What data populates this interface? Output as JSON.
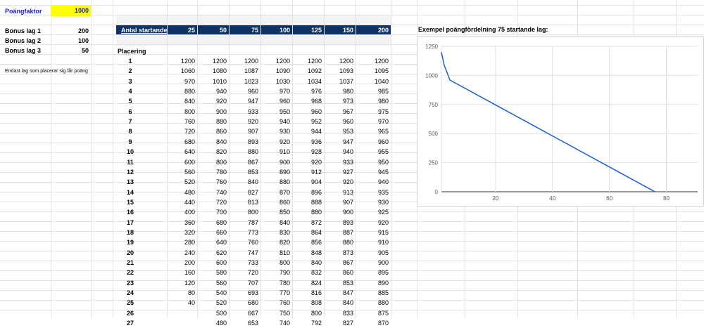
{
  "settings": {
    "points_factor_label": "Poängfaktor",
    "points_factor_value": "1000",
    "bonus": [
      {
        "label": "Bonus lag 1",
        "value": "200"
      },
      {
        "label": "Bonus lag 2",
        "value": "100"
      },
      {
        "label": "Bonus lag 3",
        "value": "50"
      }
    ],
    "note": "Endast lag som placerar sig får poäng"
  },
  "table": {
    "header_title": "Antal startande lag",
    "columns": [
      "25",
      "50",
      "75",
      "100",
      "125",
      "150",
      "200"
    ],
    "placement_label": "Placering",
    "rows": [
      {
        "place": "1",
        "values": [
          "1200",
          "1200",
          "1200",
          "1200",
          "1200",
          "1200",
          "1200"
        ]
      },
      {
        "place": "2",
        "values": [
          "1060",
          "1080",
          "1087",
          "1090",
          "1092",
          "1093",
          "1095"
        ]
      },
      {
        "place": "3",
        "values": [
          "970",
          "1010",
          "1023",
          "1030",
          "1034",
          "1037",
          "1040"
        ]
      },
      {
        "place": "4",
        "values": [
          "880",
          "940",
          "960",
          "970",
          "976",
          "980",
          "985"
        ]
      },
      {
        "place": "5",
        "values": [
          "840",
          "920",
          "947",
          "960",
          "968",
          "973",
          "980"
        ]
      },
      {
        "place": "6",
        "values": [
          "800",
          "900",
          "933",
          "950",
          "960",
          "967",
          "975"
        ]
      },
      {
        "place": "7",
        "values": [
          "760",
          "880",
          "920",
          "940",
          "952",
          "960",
          "970"
        ]
      },
      {
        "place": "8",
        "values": [
          "720",
          "860",
          "907",
          "930",
          "944",
          "953",
          "965"
        ]
      },
      {
        "place": "9",
        "values": [
          "680",
          "840",
          "893",
          "920",
          "936",
          "947",
          "960"
        ]
      },
      {
        "place": "10",
        "values": [
          "640",
          "820",
          "880",
          "910",
          "928",
          "940",
          "955"
        ]
      },
      {
        "place": "11",
        "values": [
          "600",
          "800",
          "867",
          "900",
          "920",
          "933",
          "950"
        ]
      },
      {
        "place": "12",
        "values": [
          "560",
          "780",
          "853",
          "890",
          "912",
          "927",
          "945"
        ]
      },
      {
        "place": "13",
        "values": [
          "520",
          "760",
          "840",
          "880",
          "904",
          "920",
          "940"
        ]
      },
      {
        "place": "14",
        "values": [
          "480",
          "740",
          "827",
          "870",
          "896",
          "913",
          "935"
        ]
      },
      {
        "place": "15",
        "values": [
          "440",
          "720",
          "813",
          "860",
          "888",
          "907",
          "930"
        ]
      },
      {
        "place": "16",
        "values": [
          "400",
          "700",
          "800",
          "850",
          "880",
          "900",
          "925"
        ]
      },
      {
        "place": "17",
        "values": [
          "360",
          "680",
          "787",
          "840",
          "872",
          "893",
          "920"
        ]
      },
      {
        "place": "18",
        "values": [
          "320",
          "660",
          "773",
          "830",
          "864",
          "887",
          "915"
        ]
      },
      {
        "place": "19",
        "values": [
          "280",
          "640",
          "760",
          "820",
          "856",
          "880",
          "910"
        ]
      },
      {
        "place": "20",
        "values": [
          "240",
          "620",
          "747",
          "810",
          "848",
          "873",
          "905"
        ]
      },
      {
        "place": "21",
        "values": [
          "200",
          "600",
          "733",
          "800",
          "840",
          "867",
          "900"
        ]
      },
      {
        "place": "22",
        "values": [
          "160",
          "580",
          "720",
          "790",
          "832",
          "860",
          "895"
        ]
      },
      {
        "place": "23",
        "values": [
          "120",
          "560",
          "707",
          "780",
          "824",
          "853",
          "890"
        ]
      },
      {
        "place": "24",
        "values": [
          "80",
          "540",
          "693",
          "770",
          "816",
          "847",
          "885"
        ]
      },
      {
        "place": "25",
        "values": [
          "40",
          "520",
          "680",
          "760",
          "808",
          "840",
          "880"
        ]
      },
      {
        "place": "26",
        "values": [
          "",
          "500",
          "667",
          "750",
          "800",
          "833",
          "875"
        ]
      },
      {
        "place": "27",
        "values": [
          "",
          "480",
          "653",
          "740",
          "792",
          "827",
          "870"
        ]
      }
    ]
  },
  "chart": {
    "title": "Exempel poängfördelning 75 startande lag:",
    "line_color": "#1a5fd6"
  },
  "chart_data": {
    "type": "line",
    "title": "Exempel poängfördelning 75 startande lag:",
    "xlabel": "",
    "ylabel": "",
    "xlim": [
      1,
      91
    ],
    "ylim": [
      0,
      1250
    ],
    "xticks": [
      "20",
      "40",
      "60",
      "80"
    ],
    "yticks": [
      "0",
      "250",
      "500",
      "750",
      "1000",
      "1250"
    ],
    "grid": true,
    "series": [
      {
        "x": [
          1,
          2,
          3,
          4,
          20,
          40,
          60,
          75,
          76
        ],
        "values": [
          1200,
          1087,
          1023,
          960,
          747,
          480,
          213,
          13,
          0
        ]
      }
    ]
  }
}
